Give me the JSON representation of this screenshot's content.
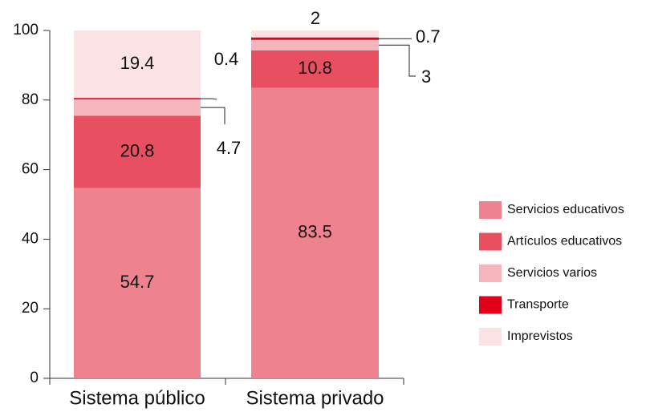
{
  "chart_data": {
    "type": "stacked_bar",
    "categories": [
      "Sistema público",
      "Sistema privado"
    ],
    "series": [
      {
        "name": "Servicios educativos",
        "color": "#ee838f",
        "values": [
          54.7,
          83.5
        ]
      },
      {
        "name": "Artículos educativos",
        "color": "#e84f61",
        "values": [
          20.8,
          10.8
        ]
      },
      {
        "name": "Servicios varios",
        "color": "#f4b5bc",
        "values": [
          4.7,
          3
        ]
      },
      {
        "name": "Transporte",
        "color": "#e1001a",
        "values": [
          0.4,
          0.7
        ]
      },
      {
        "name": "Imprevistos",
        "color": "#fbe3e5",
        "values": [
          19.4,
          2
        ]
      }
    ],
    "ylim": [
      0,
      100
    ],
    "yticks": [
      0,
      20,
      40,
      60,
      80,
      100
    ],
    "legend": "right"
  }
}
